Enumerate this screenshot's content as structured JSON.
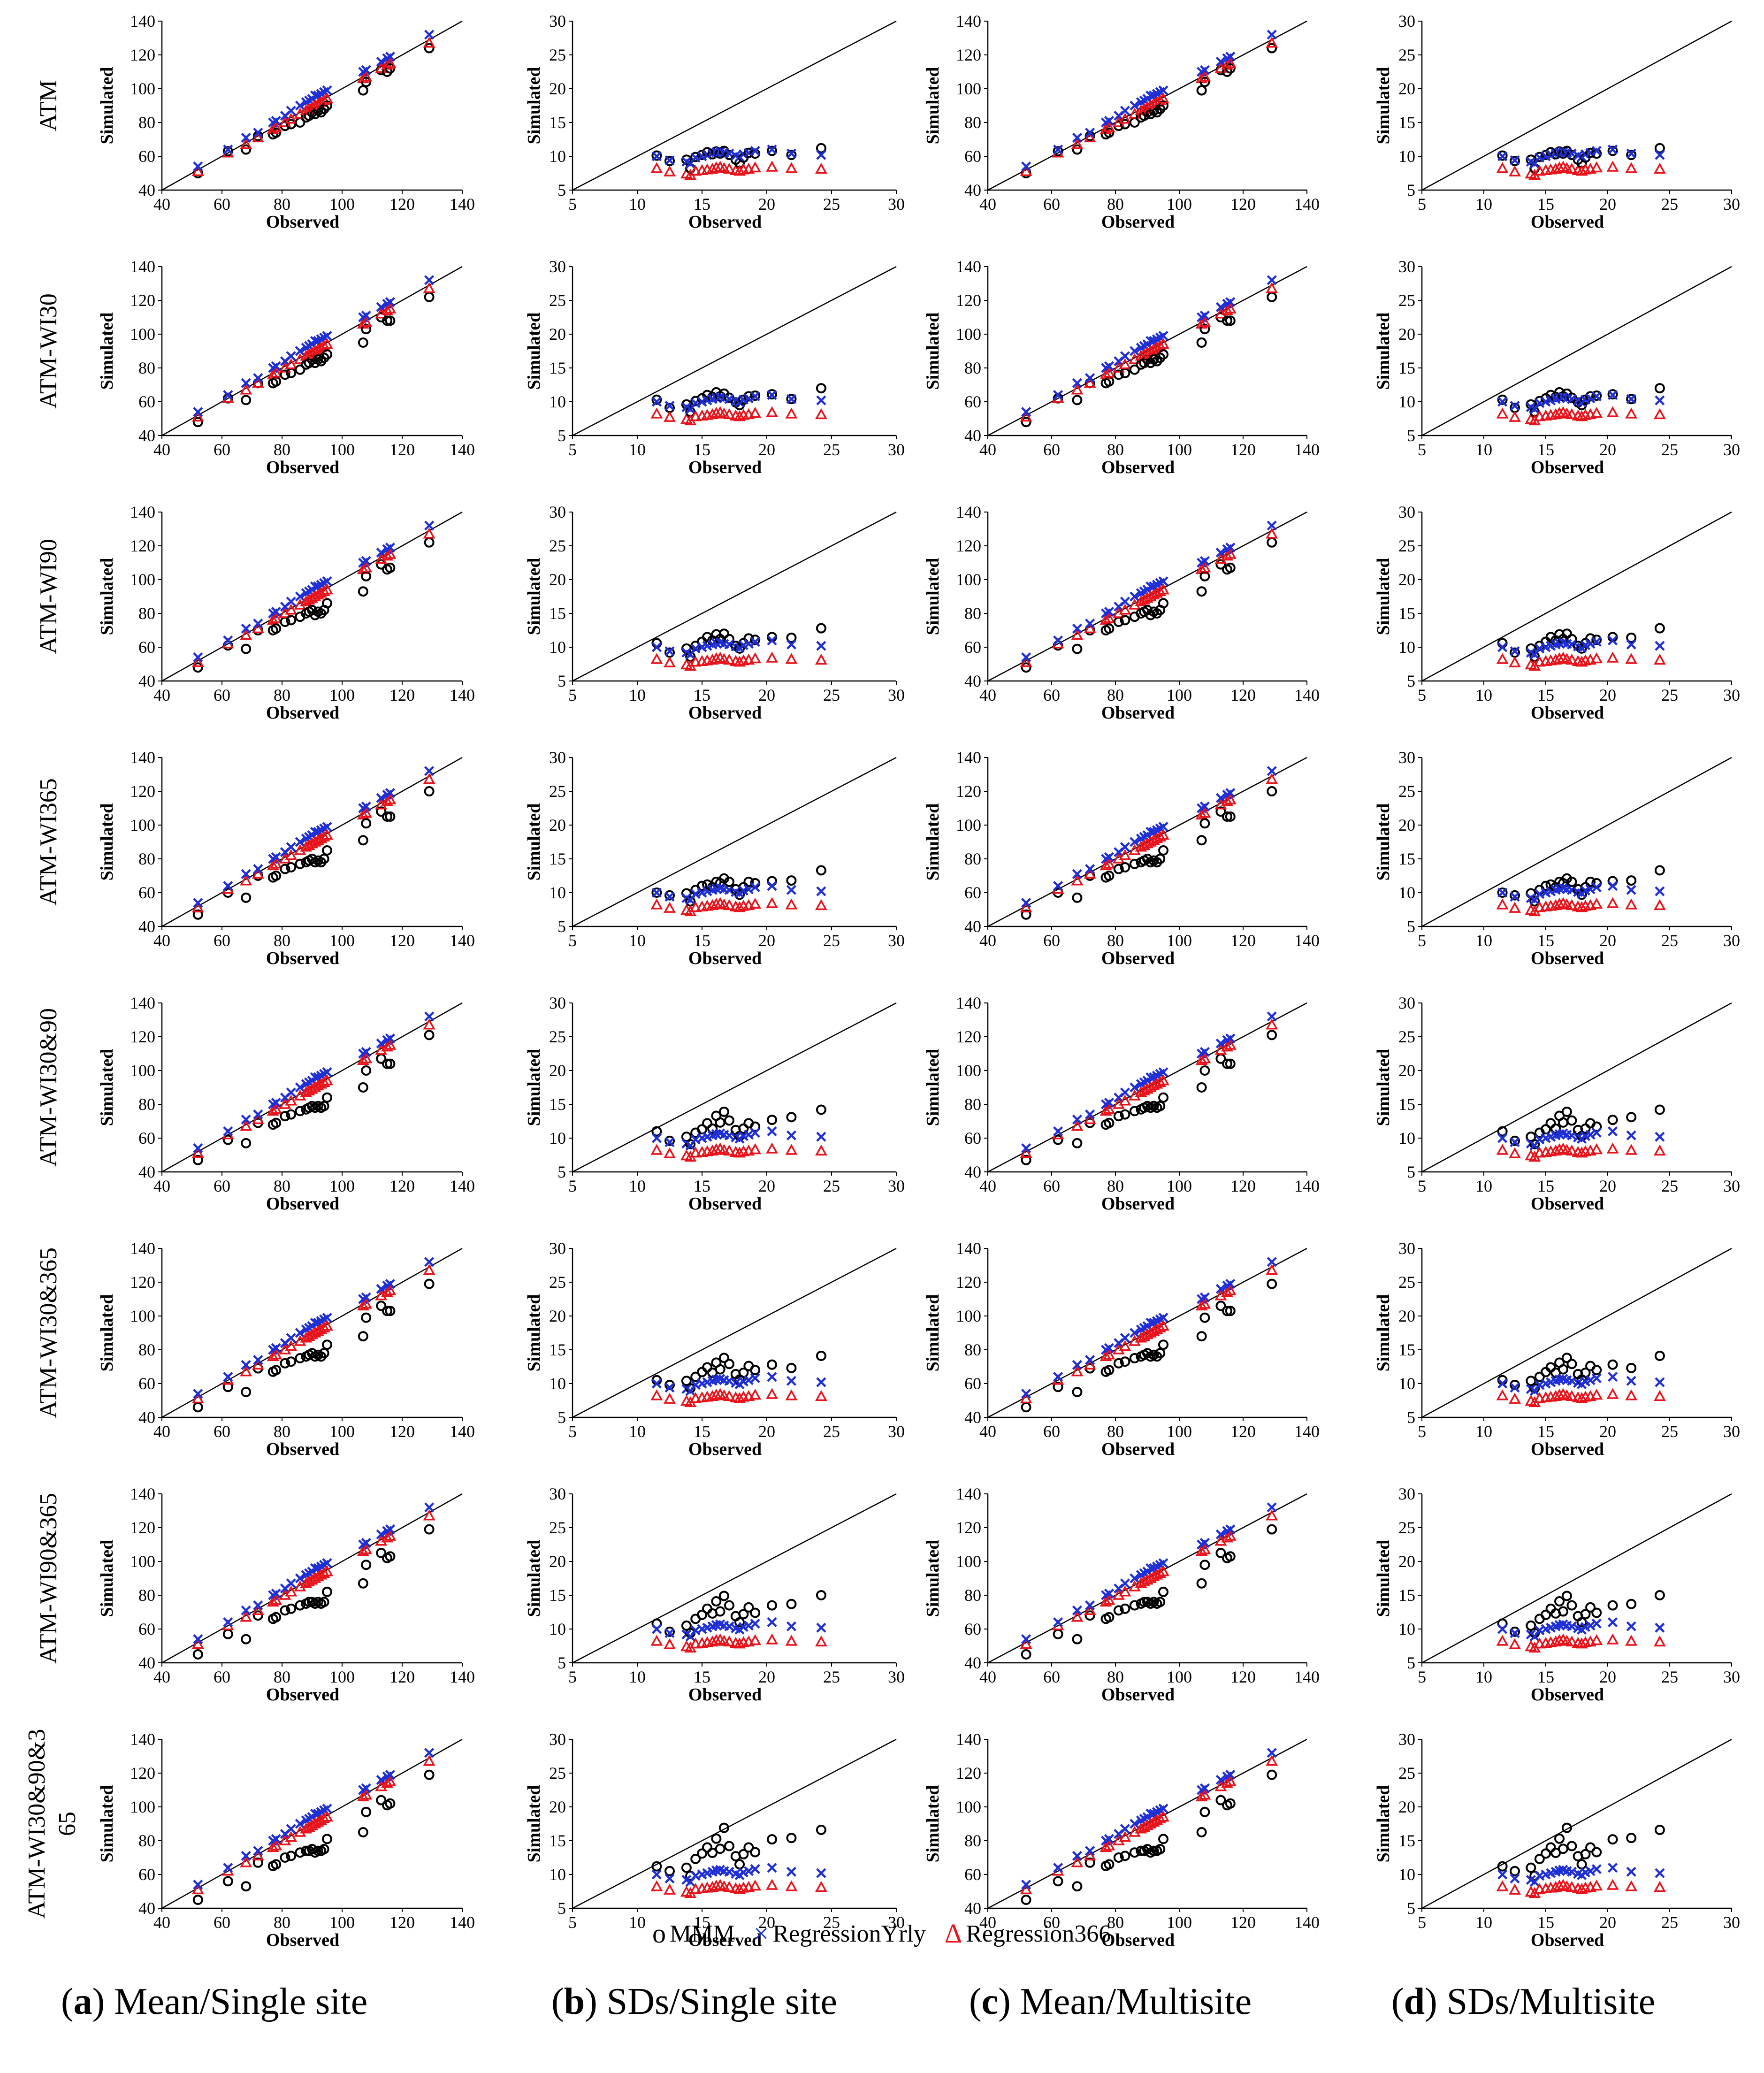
{
  "figure": {
    "row_labels": [
      "ATM",
      "ATM-WI30",
      "ATM-WI90",
      "ATM-WI365",
      "ATM-WI30&90",
      "ATM-WI30&365",
      "ATM-WI90&365",
      "ATM-WI30&90&365"
    ],
    "row_label_last_lines": [
      "ATM-WI30&90&3",
      "65"
    ],
    "xlabel": "Observed",
    "ylabel": "Simulated",
    "legend": [
      {
        "symbol": "o",
        "label": "MMM",
        "color": "#000000"
      },
      {
        "symbol": "×",
        "label": "RegressionYrly",
        "color": "#1f2fd6"
      },
      {
        "symbol": "Δ",
        "label": "Regression366",
        "color": "#e8131b"
      }
    ],
    "captions": [
      {
        "letter": "a",
        "text": "Mean/Single site"
      },
      {
        "letter": "b",
        "text": "SDs/Single site"
      },
      {
        "letter": "c",
        "text": "Mean/Multisite"
      },
      {
        "letter": "d",
        "text": "SDs/Multisite"
      }
    ]
  },
  "chart_data": {
    "type": "scatter",
    "panel_grid": {
      "rows": 8,
      "columns": 4
    },
    "mean_axes": {
      "xlim": [
        40,
        140
      ],
      "ylim": [
        40,
        140
      ],
      "xticks": [
        40,
        60,
        80,
        100,
        120,
        140
      ],
      "yticks": [
        40,
        60,
        80,
        100,
        120,
        140
      ]
    },
    "sd_axes": {
      "xlim": [
        5,
        30
      ],
      "ylim": [
        5,
        30
      ],
      "xticks": [
        5,
        10,
        15,
        20,
        25,
        30
      ],
      "yticks": [
        5,
        10,
        15,
        20,
        25,
        30
      ]
    },
    "reference_line": "1:1",
    "mean_observed": [
      52,
      62,
      68,
      72,
      77,
      78,
      81,
      83,
      86,
      88,
      89,
      90,
      91,
      92,
      93,
      94,
      95,
      107,
      108,
      113,
      115,
      116,
      129
    ],
    "mean_series": {
      "RegressionYrly": [
        54,
        64,
        71,
        74,
        80,
        81,
        84,
        87,
        90,
        92,
        93,
        94,
        96,
        96,
        97,
        98,
        99,
        110,
        111,
        116,
        118,
        119,
        132
      ],
      "Regression366": [
        51,
        62,
        67,
        71,
        76,
        77,
        80,
        82,
        85,
        87,
        88,
        89,
        90,
        91,
        92,
        93,
        94,
        106,
        107,
        112,
        114,
        115,
        127
      ]
    },
    "mean_MMM_by_row": [
      [
        50,
        63,
        64,
        72,
        73,
        74,
        78,
        79,
        80,
        83,
        84,
        86,
        85,
        87,
        86,
        88,
        90,
        99,
        104,
        111,
        110,
        112,
        124
      ],
      [
        48,
        62,
        61,
        71,
        71,
        72,
        76,
        77,
        79,
        82,
        83,
        85,
        83,
        85,
        84,
        86,
        88,
        95,
        103,
        110,
        108,
        108,
        122
      ],
      [
        48,
        61,
        59,
        70,
        70,
        71,
        75,
        76,
        78,
        80,
        81,
        82,
        79,
        81,
        80,
        82,
        86,
        93,
        102,
        109,
        106,
        107,
        122
      ],
      [
        47,
        60,
        57,
        70,
        69,
        70,
        74,
        75,
        77,
        78,
        79,
        80,
        78,
        79,
        78,
        80,
        85,
        91,
        101,
        108,
        105,
        105,
        120
      ],
      [
        47,
        59,
        57,
        69,
        68,
        69,
        73,
        74,
        76,
        77,
        78,
        79,
        78,
        79,
        78,
        79,
        84,
        90,
        100,
        107,
        104,
        104,
        121
      ],
      [
        46,
        58,
        55,
        69,
        67,
        68,
        72,
        73,
        75,
        76,
        77,
        78,
        76,
        77,
        76,
        78,
        83,
        88,
        99,
        106,
        103,
        103,
        119
      ],
      [
        45,
        57,
        54,
        68,
        66,
        67,
        71,
        72,
        74,
        75,
        76,
        76,
        75,
        76,
        75,
        76,
        82,
        87,
        98,
        105,
        102,
        103,
        119
      ],
      [
        45,
        56,
        53,
        67,
        65,
        66,
        70,
        71,
        73,
        74,
        74,
        75,
        73,
        74,
        74,
        75,
        81,
        85,
        97,
        104,
        101,
        102,
        119
      ]
    ],
    "sd_observed": [
      11.5,
      12.5,
      13.8,
      14.1,
      14.5,
      15.0,
      15.4,
      15.8,
      16.1,
      16.4,
      16.7,
      17.1,
      17.6,
      17.9,
      18.2,
      18.6,
      19.1,
      20.4,
      21.9,
      24.2
    ],
    "sd_series": {
      "RegressionYrly": [
        10.0,
        9.4,
        9.2,
        8.9,
        9.8,
        10.0,
        10.2,
        10.4,
        10.6,
        10.7,
        10.5,
        10.4,
        10.1,
        9.9,
        10.3,
        10.5,
        10.8,
        11.0,
        10.4,
        10.2
      ],
      "Regression366": [
        8.2,
        7.7,
        7.4,
        7.2,
        7.8,
        7.9,
        8.0,
        8.1,
        8.3,
        8.4,
        8.2,
        8.1,
        7.9,
        7.8,
        8.0,
        8.1,
        8.3,
        8.4,
        8.2,
        8.1
      ]
    },
    "sd_MMM_by_row": [
      [
        10.1,
        9.3,
        9.5,
        8.2,
        9.9,
        10.2,
        10.6,
        10.3,
        10.7,
        10.4,
        10.8,
        10.2,
        9.5,
        9.0,
        9.8,
        10.5,
        10.4,
        10.8,
        10.2,
        11.2
      ],
      [
        10.3,
        9.1,
        9.6,
        8.5,
        10.1,
        10.5,
        11.0,
        10.7,
        11.4,
        10.8,
        11.2,
        10.6,
        9.9,
        9.5,
        10.3,
        10.8,
        10.9,
        11.1,
        10.4,
        12.0
      ],
      [
        10.6,
        9.2,
        9.8,
        8.6,
        10.2,
        10.8,
        11.5,
        11.0,
        11.9,
        11.2,
        12.0,
        11.2,
        10.2,
        9.8,
        10.6,
        11.3,
        11.1,
        11.5,
        11.4,
        12.8
      ],
      [
        10.0,
        9.6,
        9.9,
        8.7,
        10.4,
        11.0,
        11.2,
        10.8,
        11.6,
        11.4,
        12.1,
        11.6,
        10.5,
        9.7,
        10.8,
        11.6,
        11.4,
        11.7,
        11.8,
        13.3
      ],
      [
        11.0,
        9.6,
        10.2,
        9.1,
        10.8,
        11.3,
        12.2,
        11.4,
        13.3,
        12.3,
        13.9,
        12.6,
        11.2,
        10.3,
        11.4,
        12.2,
        11.7,
        12.7,
        13.1,
        14.2
      ],
      [
        10.5,
        9.8,
        10.4,
        9.3,
        11.0,
        11.7,
        12.4,
        11.6,
        13.1,
        12.1,
        13.8,
        12.9,
        11.4,
        10.6,
        11.6,
        12.6,
        12.0,
        12.8,
        12.3,
        14.1
      ],
      [
        10.8,
        9.6,
        10.5,
        9.4,
        11.5,
        12.1,
        13.0,
        12.3,
        14.1,
        12.6,
        14.9,
        13.5,
        11.9,
        11.0,
        12.2,
        13.2,
        12.4,
        13.5,
        13.7,
        15.0
      ],
      [
        11.2,
        10.5,
        11.0,
        9.8,
        12.3,
        13.1,
        14.0,
        13.2,
        15.3,
        13.8,
        16.9,
        14.2,
        12.7,
        11.5,
        13.0,
        14.0,
        13.3,
        15.2,
        15.4,
        16.6
      ]
    ]
  }
}
